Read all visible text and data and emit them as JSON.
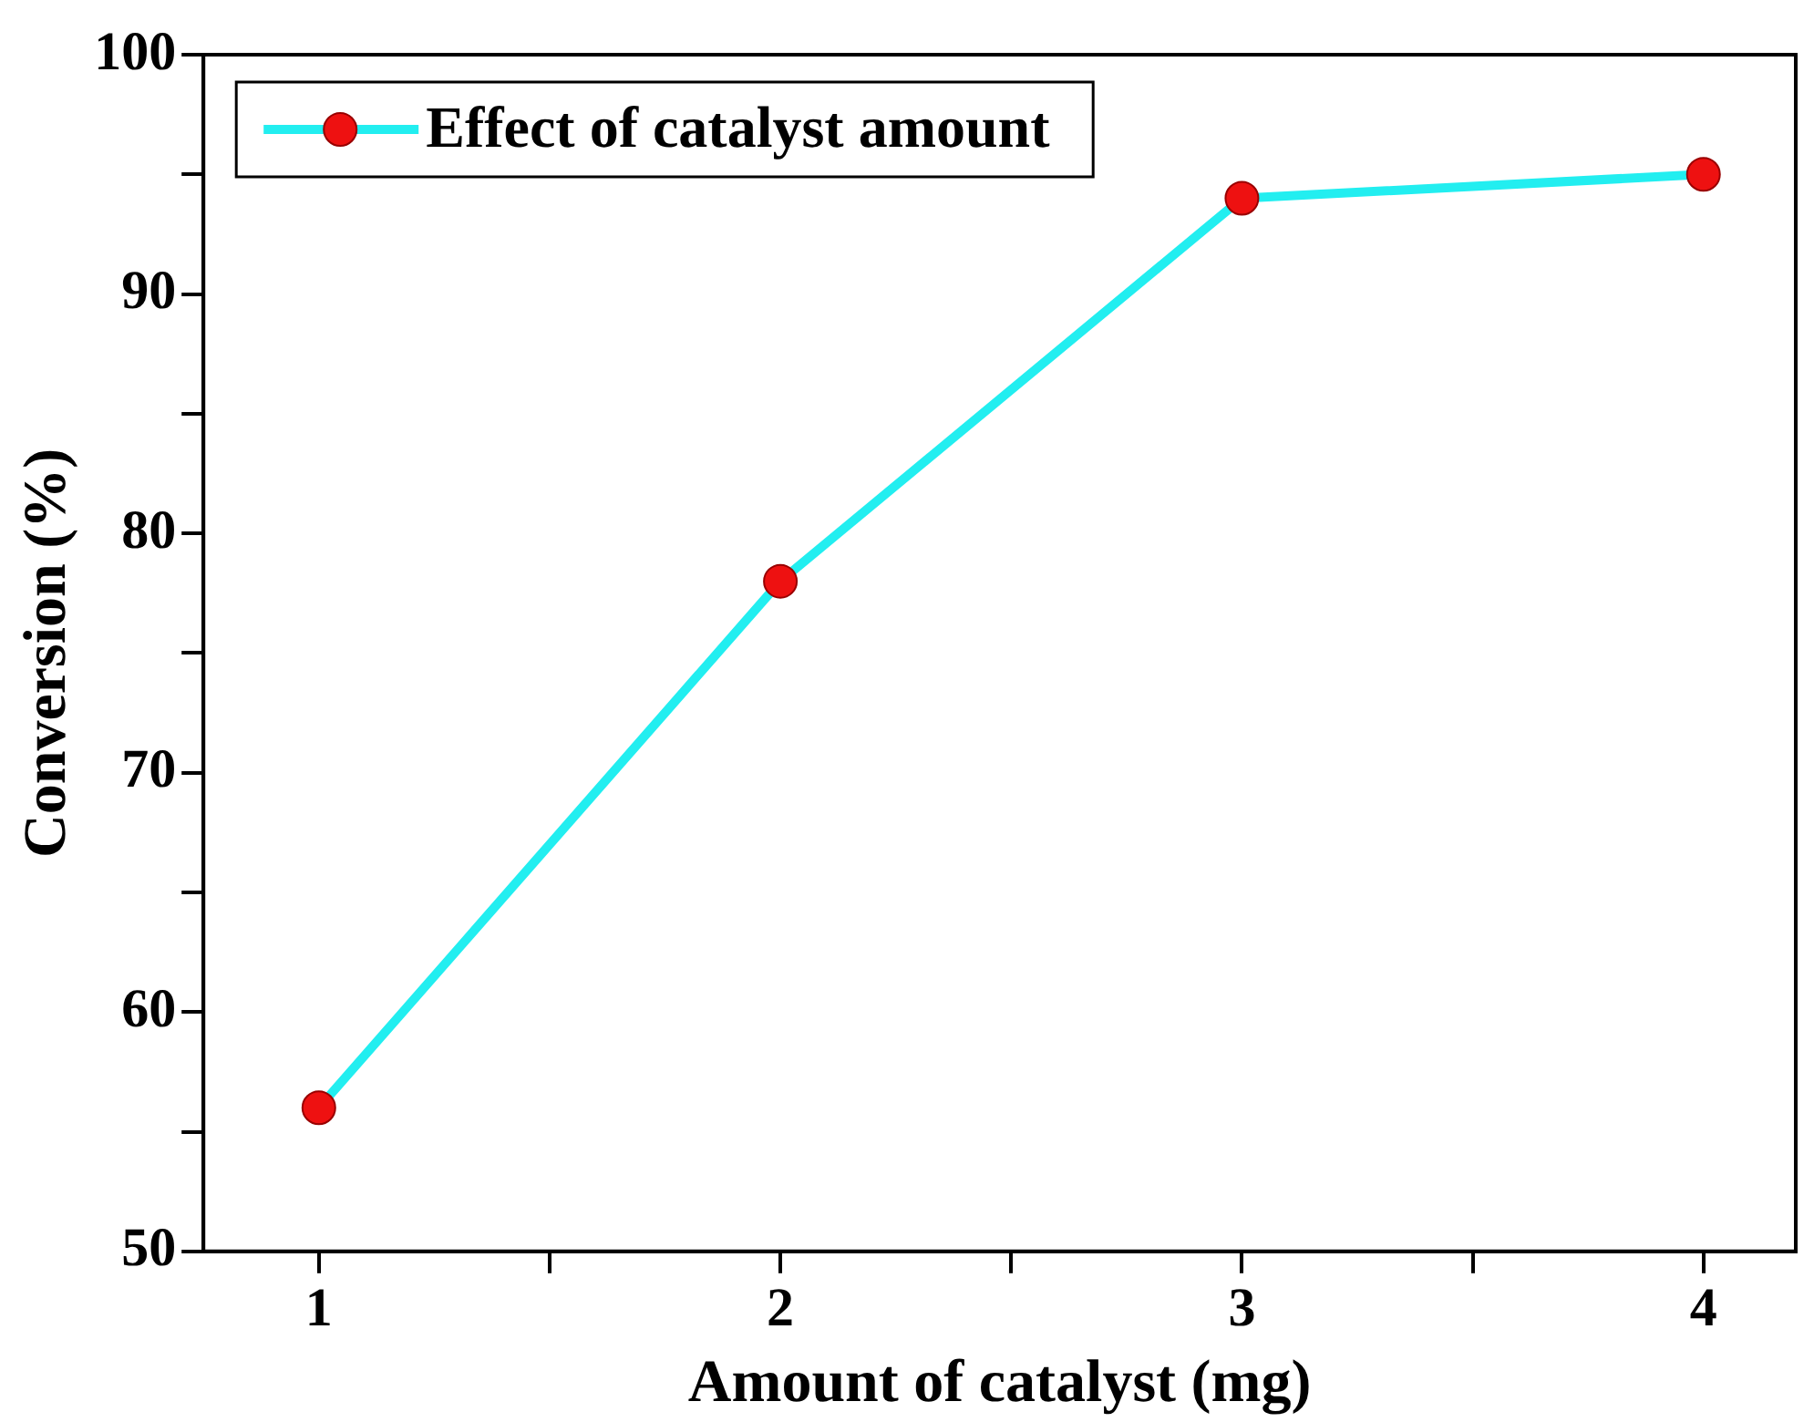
{
  "chart_data": {
    "type": "line",
    "xlabel": "Amount of catalyst (mg)",
    "ylabel": "Conversion (%)",
    "x": [
      1,
      2,
      3,
      4
    ],
    "series": [
      {
        "name": "Effect of catalyst amount",
        "color": "#22eef0",
        "values": [
          56,
          78,
          94,
          95
        ]
      }
    ],
    "xlim": [
      0.75,
      4.2
    ],
    "xticks": [
      1,
      {
        "value": 1.5,
        "label": null
      },
      2,
      {
        "value": 2.5,
        "label": null
      },
      3,
      {
        "value": 3.5,
        "label": null
      },
      4
    ],
    "ylim": [
      50,
      100
    ],
    "yticks": [
      50,
      {
        "value": 55,
        "label": null
      },
      60,
      {
        "value": 65,
        "label": null
      },
      70,
      {
        "value": 75,
        "label": null
      },
      80,
      {
        "value": 85,
        "label": null
      },
      90,
      {
        "value": 95,
        "label": null
      },
      100
    ],
    "legend": "top left",
    "marker": "circle",
    "line_style": "solid",
    "grid": false
  }
}
